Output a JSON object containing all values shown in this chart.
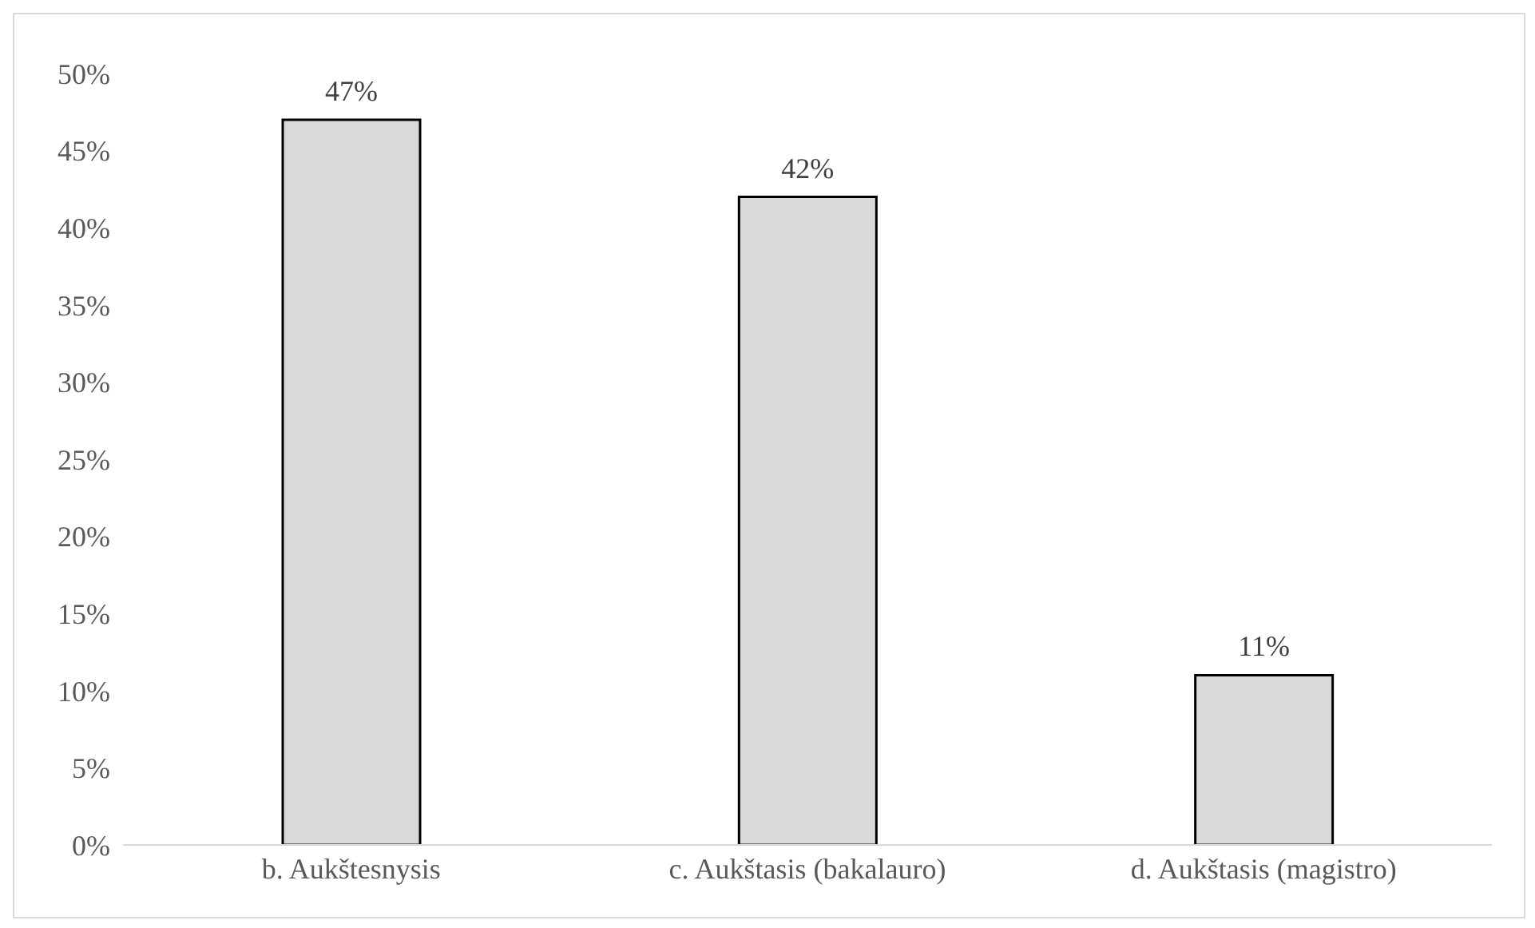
{
  "chart_data": {
    "type": "bar",
    "categories": [
      "b. Aukštesnysis",
      "c. Aukštasis (bakalauro)",
      "d. Aukštasis (magistro)"
    ],
    "values": [
      47,
      42,
      11
    ],
    "value_labels": [
      "47%",
      "42%",
      "11%"
    ],
    "color": "#d9d9d9",
    "ylim": [
      0,
      50
    ],
    "yticks": [
      {
        "value": 0,
        "label": "0%"
      },
      {
        "value": 5,
        "label": "5%"
      },
      {
        "value": 10,
        "label": "10%"
      },
      {
        "value": 15,
        "label": "15%"
      },
      {
        "value": 20,
        "label": "20%"
      },
      {
        "value": 25,
        "label": "25%"
      },
      {
        "value": 30,
        "label": "30%"
      },
      {
        "value": 35,
        "label": "35%"
      },
      {
        "value": 40,
        "label": "40%"
      },
      {
        "value": 45,
        "label": "45%"
      },
      {
        "value": 50,
        "label": "50%"
      }
    ],
    "grid": false,
    "legend": false
  }
}
